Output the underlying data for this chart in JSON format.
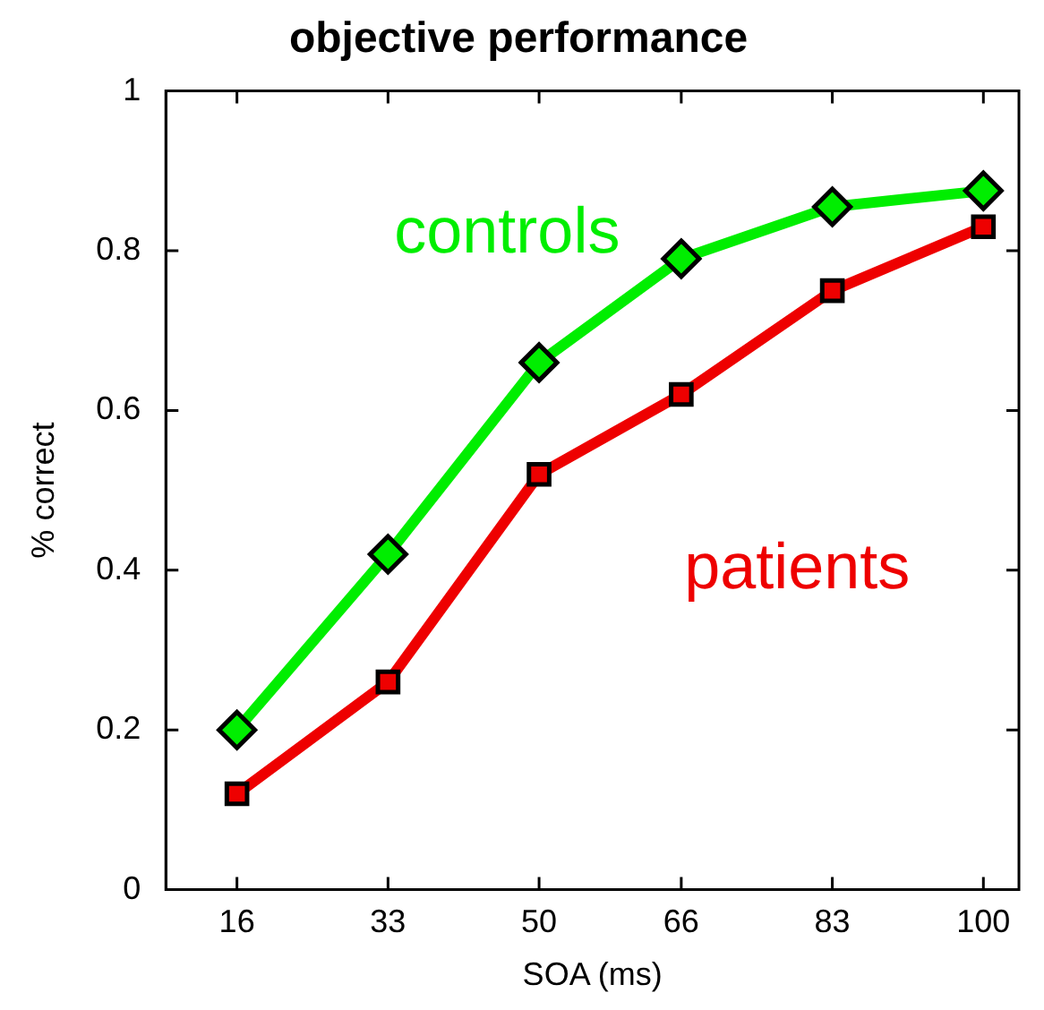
{
  "chart_data": {
    "type": "line",
    "title": "objective performance",
    "xlabel": "SOA (ms)",
    "ylabel": "% correct",
    "x": [
      16,
      33,
      50,
      66,
      83,
      100
    ],
    "series": [
      {
        "name": "controls",
        "color": "#00ee00",
        "marker": "diamond",
        "values": [
          0.2,
          0.42,
          0.66,
          0.79,
          0.855,
          0.875
        ]
      },
      {
        "name": "patients",
        "color": "#ee0000",
        "marker": "square",
        "values": [
          0.12,
          0.26,
          0.52,
          0.62,
          0.75,
          0.83
        ]
      }
    ],
    "xlim": [
      8,
      104
    ],
    "xticks": [
      16,
      33,
      50,
      66,
      83,
      100
    ],
    "ylim": [
      0,
      1
    ],
    "yticks": [
      0,
      0.2,
      0.4,
      0.6,
      0.8,
      1
    ],
    "grid": false,
    "line_style": "solid"
  }
}
